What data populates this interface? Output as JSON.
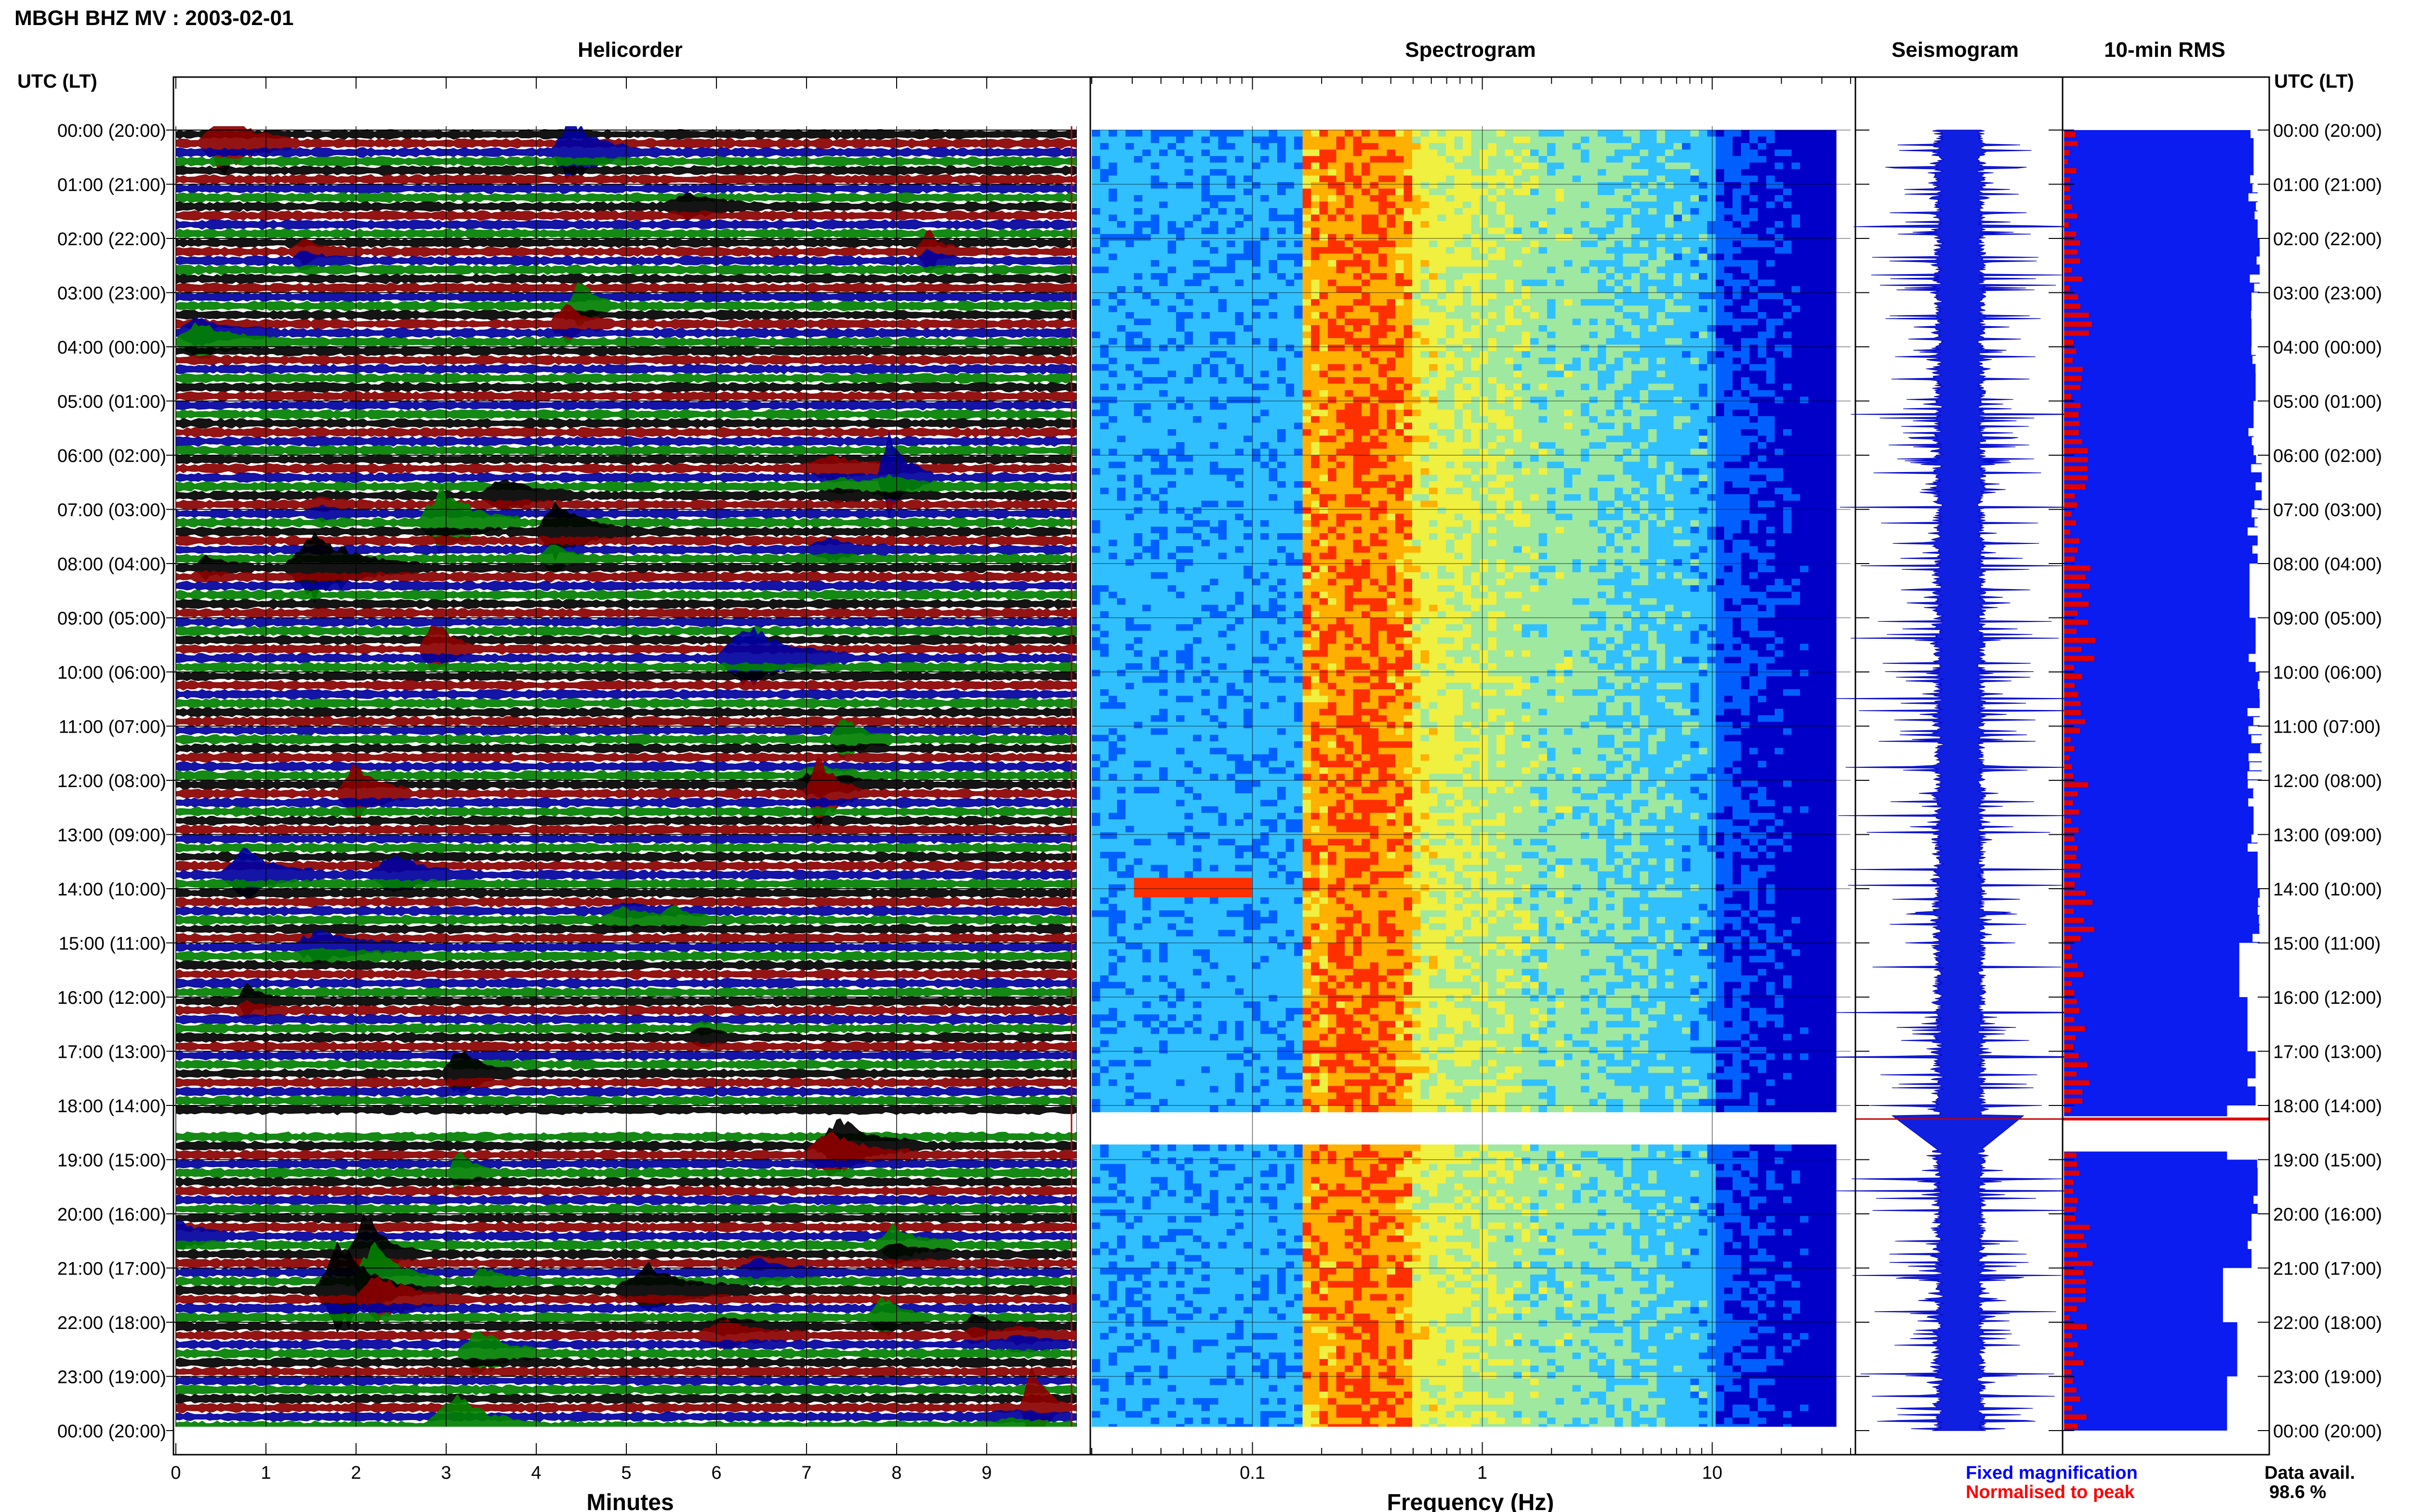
{
  "header": {
    "station_title": "MBGH BHZ MV : 2003-02-01",
    "panel_titles": [
      "Helicorder",
      "Spectrogram",
      "Seismogram",
      "10-min RMS"
    ],
    "left_axis_header": "UTC (LT)",
    "right_axis_header": "UTC (LT)"
  },
  "time_labels": [
    "00:00 (20:00)",
    "01:00 (21:00)",
    "02:00 (22:00)",
    "03:00 (23:00)",
    "04:00 (00:00)",
    "05:00 (01:00)",
    "06:00 (02:00)",
    "07:00 (03:00)",
    "08:00 (04:00)",
    "09:00 (05:00)",
    "10:00 (06:00)",
    "11:00 (07:00)",
    "12:00 (08:00)",
    "13:00 (09:00)",
    "14:00 (10:00)",
    "15:00 (11:00)",
    "16:00 (12:00)",
    "17:00 (13:00)",
    "18:00 (14:00)",
    "19:00 (15:00)",
    "20:00 (16:00)",
    "21:00 (17:00)",
    "22:00 (18:00)",
    "23:00 (19:00)",
    "00:00 (20:00)"
  ],
  "helicorder": {
    "xlabel": "Minutes",
    "x_ticks": [
      "0",
      "1",
      "2",
      "3",
      "4",
      "5",
      "6",
      "7",
      "8",
      "9"
    ],
    "xlim": [
      0,
      10
    ],
    "trace_colors": [
      "#000000",
      "#8b0000",
      "#0000a0",
      "#008000"
    ],
    "data_gap_hours": [
      18.2,
      18.55
    ]
  },
  "spectrogram": {
    "xlabel": "Frequency (Hz)",
    "x_ticks": [
      "0.1",
      "1",
      "10"
    ],
    "x_scale": "log",
    "xlim": [
      0.02,
      40
    ],
    "dominant_band_hz": [
      0.2,
      0.4
    ],
    "colormap": [
      "#0000c8",
      "#0060ff",
      "#30c0ff",
      "#9ee8a0",
      "#f0f040",
      "#ffb000",
      "#ff3000"
    ]
  },
  "legend": {
    "fixed": "Fixed magnification",
    "normalised": "Normalised to peak",
    "fixed_color": "#0000ff",
    "normalised_color": "#ff0000"
  },
  "data_availability": {
    "label": "Data avail.",
    "value": "98.6 %"
  },
  "chart_data": {
    "type": "bar",
    "title": "10-min RMS",
    "ylabel": "UTC (LT)",
    "ylim": [
      0,
      24
    ],
    "x": [
      0.5,
      1.5,
      2.5,
      3.5,
      4.5,
      5.5,
      6.5,
      7.5,
      8.5,
      9.5,
      10.5,
      11.5,
      12.5,
      13.5,
      14.5,
      15.5,
      16.5,
      17.5,
      18.5,
      19.5,
      20.5,
      21.5,
      22.5,
      23.5
    ],
    "series": [
      {
        "name": "Fixed magnification",
        "values": [
          0.93,
          0.95,
          0.96,
          0.92,
          0.94,
          0.93,
          0.97,
          0.95,
          0.91,
          0.94,
          0.96,
          0.97,
          0.93,
          0.95,
          0.96,
          0.86,
          0.9,
          0.94,
          0.8,
          0.95,
          0.92,
          0.78,
          0.85,
          0.8
        ]
      },
      {
        "name": "Normalised to peak",
        "values": [
          0.14,
          0.12,
          0.2,
          0.28,
          0.18,
          0.26,
          0.22,
          0.16,
          0.24,
          0.3,
          0.22,
          0.18,
          0.26,
          0.2,
          0.28,
          0.18,
          0.22,
          0.24,
          0.2,
          0.18,
          0.26,
          0.2,
          0.24,
          0.22
        ]
      }
    ]
  }
}
